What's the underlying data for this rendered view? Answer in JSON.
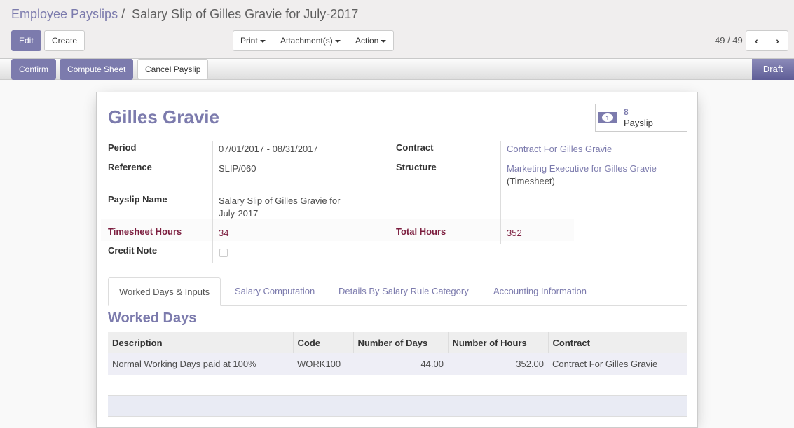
{
  "breadcrumb": {
    "parent": "Employee Payslips",
    "separator": "/",
    "current": "Salary Slip of Gilles Gravie for July-2017"
  },
  "toolbar": {
    "edit": "Edit",
    "create": "Create",
    "print": "Print",
    "attachments": "Attachment(s)",
    "action": "Action"
  },
  "pager": {
    "value": "49 / 49"
  },
  "statusbar": {
    "confirm": "Confirm",
    "compute": "Compute Sheet",
    "cancel": "Cancel Payslip",
    "state": "Draft"
  },
  "sheet": {
    "employee": "Gilles Gravie",
    "smart_button": {
      "count": "8",
      "label": "Payslip"
    },
    "fields": {
      "period_label": "Period",
      "period": "07/01/2017 - 08/31/2017",
      "reference_label": "Reference",
      "reference": "SLIP/060",
      "name_label": "Payslip Name",
      "name_line1": "Salary Slip of Gilles Gravie for",
      "name_line2": "July-2017",
      "timesheet_label": "Timesheet Hours",
      "timesheet": "34",
      "credit_label": "Credit Note",
      "credit_checked": false,
      "contract_label": "Contract",
      "contract": "Contract For Gilles Gravie",
      "structure_label": "Structure",
      "structure": "Marketing Executive for Gilles Gravie",
      "structure_suffix": "(Timesheet)",
      "total_label": "Total Hours",
      "total": "352"
    },
    "tabs": [
      "Worked Days & Inputs",
      "Salary Computation",
      "Details By Salary Rule Category",
      "Accounting Information"
    ],
    "section_title": "Worked Days",
    "table": {
      "headers": [
        "Description",
        "Code",
        "Number of Days",
        "Number of Hours",
        "Contract"
      ],
      "rows": [
        [
          "Normal Working Days paid at 100%",
          "WORK100",
          "44.00",
          "352.00",
          "Contract For Gilles Gravie"
        ]
      ]
    }
  }
}
